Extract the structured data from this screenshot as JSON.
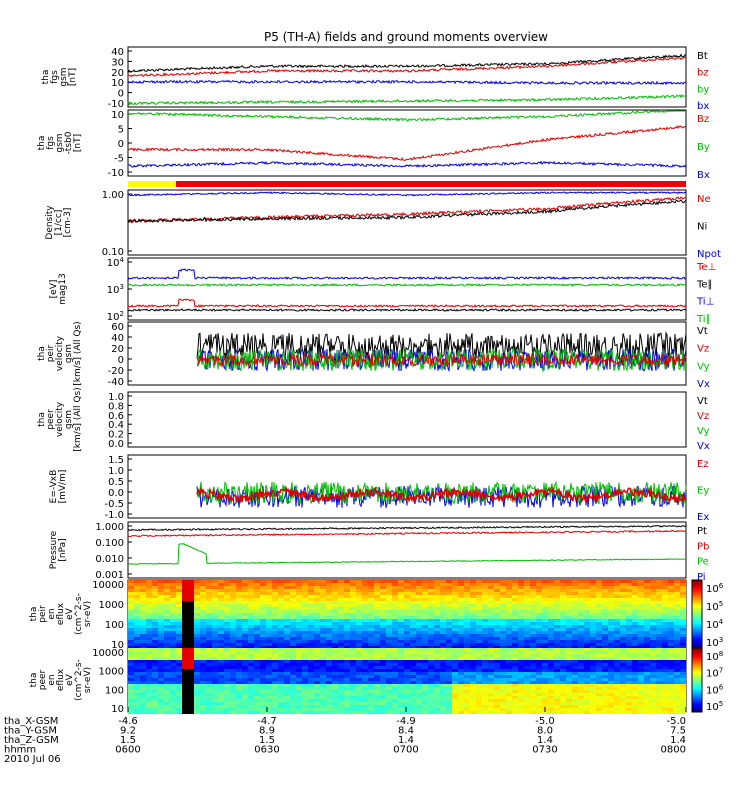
{
  "title": "P5 (TH-A) fields and ground moments overview",
  "colors": {
    "black": "#000000",
    "red": "#dd0000",
    "green": "#00bb00",
    "blue": "#0000dd",
    "bar_yellow": "#ffff00",
    "bar_red": "#ee0000"
  },
  "chart_data": [
    {
      "type": "line",
      "panel": "fgs_gsm",
      "ylabel": [
        "tha",
        "fgs",
        "gsm",
        "[nT]"
      ],
      "ylim": [
        -10,
        40
      ],
      "yticks": [
        "40",
        "30",
        "20",
        "10",
        "0",
        "-10"
      ],
      "x": [
        "0600",
        "0630",
        "0700",
        "0730",
        "0800"
      ],
      "series": [
        {
          "name": "Bt",
          "color": "#000000",
          "values": [
            20,
            24,
            24,
            26,
            33
          ]
        },
        {
          "name": "bz",
          "color": "#dd0000",
          "values": [
            16,
            20,
            20,
            24,
            31
          ]
        },
        {
          "name": "by",
          "color": "#00bb00",
          "values": [
            -7,
            -6,
            -5,
            -4,
            -1
          ]
        },
        {
          "name": "bx",
          "color": "#0000dd",
          "values": [
            11,
            11,
            11,
            10,
            10
          ]
        }
      ]
    },
    {
      "type": "line",
      "panel": "fgs_gsm_dsb0",
      "ylabel": [
        "tha",
        "fgs",
        "gsm",
        "-tsb0",
        "[nT]"
      ],
      "ylim": [
        -10,
        10
      ],
      "yticks": [
        "10",
        "5",
        "0",
        "-5",
        "-10"
      ],
      "x": [
        "0600",
        "0630",
        "0700",
        "0730",
        "0800"
      ],
      "series": [
        {
          "name": "Bz",
          "color": "#dd0000",
          "values": [
            -2,
            -2,
            -5,
            1,
            5
          ]
        },
        {
          "name": "By",
          "color": "#00bb00",
          "values": [
            9,
            8,
            7,
            8,
            10
          ]
        },
        {
          "name": "Bx",
          "color": "#0000dd",
          "values": [
            -7,
            -6,
            -7,
            -6,
            -7
          ]
        }
      ]
    },
    {
      "type": "line",
      "panel": "density",
      "ylabel": [
        "Density",
        "[1/cc]",
        "[cm-3]"
      ],
      "ylim": [
        0.1,
        1.0
      ],
      "yticks": [
        "1.00",
        "0.10"
      ],
      "x": [
        "0600",
        "0630",
        "0700",
        "0730",
        "0800"
      ],
      "series": [
        {
          "name": "Ne",
          "color": "#dd0000",
          "values": [
            0.3,
            0.35,
            0.4,
            0.5,
            0.8
          ]
        },
        {
          "name": "Ni",
          "color": "#000000",
          "values": [
            0.3,
            0.33,
            0.35,
            0.45,
            0.7
          ]
        },
        {
          "name": "Npot",
          "color": "#0000dd",
          "values": [
            0.9,
            1.0,
            0.9,
            1.0,
            1.0
          ]
        }
      ]
    },
    {
      "type": "line",
      "panel": "temperature",
      "ylabel": [
        "[eV]",
        "mag13"
      ],
      "yticks": [
        "10^4",
        "10^3",
        "10^2"
      ],
      "x": [
        "0600",
        "0630",
        "0700",
        "0730",
        "0800"
      ],
      "series": [
        {
          "name": "Te⊥",
          "color": "#dd0000"
        },
        {
          "name": "Te∥",
          "color": "#000000"
        },
        {
          "name": "Ti⊥",
          "color": "#0000dd"
        },
        {
          "name": "Ti∥",
          "color": "#00bb00"
        }
      ]
    },
    {
      "type": "line",
      "panel": "peir_velocity",
      "ylabel": [
        "tha",
        "peir",
        "velocity",
        "gsm",
        "[km/s] (All Qs)"
      ],
      "ylim": [
        -40,
        60
      ],
      "yticks": [
        "60",
        "40",
        "20",
        "0",
        "-20",
        "-40"
      ],
      "series": [
        {
          "name": "Vt",
          "color": "#000000"
        },
        {
          "name": "Vz",
          "color": "#dd0000"
        },
        {
          "name": "Vy",
          "color": "#00bb00"
        },
        {
          "name": "Vx",
          "color": "#0000dd"
        }
      ]
    },
    {
      "type": "line",
      "panel": "peer_velocity",
      "ylabel": [
        "tha",
        "peer",
        "velocity",
        "gsm",
        "[km/s] (All Qs)"
      ],
      "ylim": [
        0,
        1.0
      ],
      "yticks": [
        "1.0",
        "0.8",
        "0.6",
        "0.4",
        "0.2",
        "0.0"
      ],
      "series": [
        {
          "name": "Vt",
          "color": "#000000"
        },
        {
          "name": "Vz",
          "color": "#dd0000"
        },
        {
          "name": "Vy",
          "color": "#00bb00"
        },
        {
          "name": "Vx",
          "color": "#0000dd"
        }
      ]
    },
    {
      "type": "line",
      "panel": "efield",
      "ylabel": [
        "E=-VxB",
        "[mV/m]"
      ],
      "ylim": [
        -1.0,
        1.5
      ],
      "yticks": [
        "1.5",
        "1.0",
        "0.5",
        "0.0",
        "-0.5",
        "-1.0"
      ],
      "series": [
        {
          "name": "Ez",
          "color": "#dd0000"
        },
        {
          "name": "Ey",
          "color": "#00bb00"
        },
        {
          "name": "Ex",
          "color": "#0000dd"
        }
      ]
    },
    {
      "type": "line",
      "panel": "pressure",
      "ylabel": [
        "Pressure",
        "[nPa]"
      ],
      "ylim": [
        0.001,
        1.0
      ],
      "yticks": [
        "1.000",
        "0.100",
        "0.010",
        "0.001"
      ],
      "series": [
        {
          "name": "Pt",
          "color": "#000000",
          "values": [
            0.5,
            0.6,
            0.6,
            0.7,
            0.8
          ]
        },
        {
          "name": "Pb",
          "color": "#dd0000",
          "values": [
            0.25,
            0.35,
            0.35,
            0.4,
            0.5
          ]
        },
        {
          "name": "Pe",
          "color": "#00bb00",
          "values": [
            0.006,
            0.007,
            0.007,
            0.009,
            0.01
          ]
        },
        {
          "name": "Pi",
          "color": "#0000dd"
        }
      ]
    },
    {
      "type": "heatmap",
      "panel": "peir_spectrogram",
      "ylabel": [
        "tha",
        "peir",
        "en",
        "eflux",
        "eV",
        "(cm^2-s-",
        "sr-eV)"
      ],
      "yticks": [
        "10000",
        "1000",
        "100",
        "10"
      ],
      "colorbar_ticks": [
        "10^6",
        "10^5",
        "10^4",
        "10^3"
      ]
    },
    {
      "type": "heatmap",
      "panel": "peer_spectrogram",
      "ylabel": [
        "tha",
        "peer",
        "en",
        "eflux",
        "eV",
        "(cm^2-s-",
        "sr-eV)"
      ],
      "yticks": [
        "10000",
        "1000",
        "100",
        "10"
      ],
      "colorbar_ticks": [
        "10^8",
        "10^7",
        "10^6",
        "10^5"
      ]
    }
  ],
  "time_axis": {
    "rows": [
      {
        "label": "tha_X-GSM",
        "values": [
          "-4.6",
          "-4.7",
          "-4.9",
          "-5.0",
          "-5.0"
        ]
      },
      {
        "label": "tha_Y-GSM",
        "values": [
          "9.2",
          "8.9",
          "8.4",
          "8.0",
          "7.5"
        ]
      },
      {
        "label": "tha_Z-GSM",
        "values": [
          "1.5",
          "1.5",
          "1.4",
          "1.4",
          "1.4"
        ]
      },
      {
        "label": "hhmm",
        "values": [
          "0600",
          "0630",
          "0700",
          "0730",
          "0800"
        ]
      }
    ],
    "date": "2010 Jul 06"
  }
}
